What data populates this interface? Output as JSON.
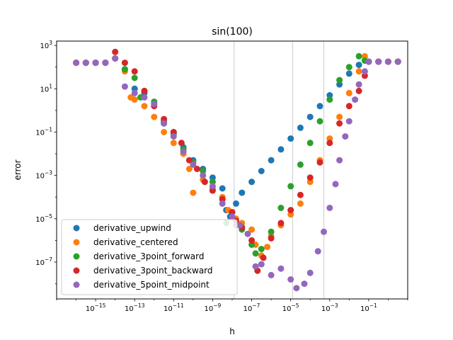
{
  "chart_data": {
    "type": "scatter",
    "title": "sin(100)",
    "xlabel": "h",
    "ylabel": "error",
    "xscale": "log",
    "yscale": "log",
    "xlim_exp": [
      -17,
      1
    ],
    "ylim_exp": [
      -8.7,
      3.2
    ],
    "x_ticks": [
      {
        "exp": -15,
        "base": "10",
        "sup": "−15"
      },
      {
        "exp": -13,
        "base": "10",
        "sup": "−13"
      },
      {
        "exp": -11,
        "base": "10",
        "sup": "−11"
      },
      {
        "exp": -9,
        "base": "10",
        "sup": "−9"
      },
      {
        "exp": -7,
        "base": "10",
        "sup": "−7"
      },
      {
        "exp": -5,
        "base": "10",
        "sup": "−5"
      },
      {
        "exp": -3,
        "base": "10",
        "sup": "−3"
      },
      {
        "exp": -1,
        "base": "10",
        "sup": "−1"
      }
    ],
    "y_ticks": [
      {
        "exp": 3,
        "base": "10",
        "sup": "3"
      },
      {
        "exp": 1,
        "base": "10",
        "sup": "1"
      },
      {
        "exp": -1,
        "base": "10",
        "sup": "−1"
      },
      {
        "exp": -3,
        "base": "10",
        "sup": "−3"
      },
      {
        "exp": -5,
        "base": "10",
        "sup": "−5"
      },
      {
        "exp": -7,
        "base": "10",
        "sup": "−7"
      }
    ],
    "vlines_log10": [
      -7.9,
      -4.9,
      -3.3
    ],
    "vline_color": "#d3d3d3",
    "legend_position": "lower-left",
    "series": [
      {
        "name": "derivative_upwind",
        "color": "#1f77b4",
        "points": [
          [
            -16,
            2.2
          ],
          [
            -15.5,
            2.2
          ],
          [
            -15,
            2.2
          ],
          [
            -14.5,
            2.2
          ],
          [
            -14,
            2.4
          ],
          [
            -13.5,
            1.9
          ],
          [
            -13,
            1.0
          ],
          [
            -12.5,
            0.8
          ],
          [
            -12,
            0.3
          ],
          [
            -11.5,
            -0.6
          ],
          [
            -11,
            -1.0
          ],
          [
            -10.5,
            -1.7
          ],
          [
            -10,
            -2.3
          ],
          [
            -9.5,
            -2.7
          ],
          [
            -9,
            -3.1
          ],
          [
            -8.5,
            -3.6
          ],
          [
            -8.3,
            -4.6
          ],
          [
            -8.1,
            -4.9
          ],
          [
            -7.8,
            -4.3
          ],
          [
            -7.5,
            -3.8
          ],
          [
            -7,
            -3.3
          ],
          [
            -6.5,
            -2.8
          ],
          [
            -6,
            -2.3
          ],
          [
            -5.5,
            -1.8
          ],
          [
            -5,
            -1.3
          ],
          [
            -4.5,
            -0.8
          ],
          [
            -4,
            -0.3
          ],
          [
            -3.5,
            0.2
          ],
          [
            -3,
            0.7
          ],
          [
            -2.5,
            1.2
          ],
          [
            -2,
            1.7
          ],
          [
            -1.5,
            2.1
          ],
          [
            -1.2,
            2.3
          ],
          [
            -1,
            2.25
          ],
          [
            -0.5,
            2.25
          ],
          [
            0,
            2.25
          ],
          [
            0.5,
            2.25
          ]
        ]
      },
      {
        "name": "derivative_centered",
        "color": "#ff7f0e",
        "points": [
          [
            -16,
            2.2
          ],
          [
            -15.5,
            2.2
          ],
          [
            -15,
            2.2
          ],
          [
            -14.5,
            2.2
          ],
          [
            -14,
            2.4
          ],
          [
            -13.5,
            1.8
          ],
          [
            -13.2,
            0.6
          ],
          [
            -13,
            0.5
          ],
          [
            -12.5,
            0.2
          ],
          [
            -12,
            -0.3
          ],
          [
            -11.5,
            -1.0
          ],
          [
            -11,
            -1.5
          ],
          [
            -10.5,
            -2.0
          ],
          [
            -10.2,
            -2.7
          ],
          [
            -10,
            -3.8
          ],
          [
            -9.5,
            -3.2
          ],
          [
            -9,
            -3.6
          ],
          [
            -8.5,
            -4.0
          ],
          [
            -8.2,
            -4.6
          ],
          [
            -7.8,
            -5.0
          ],
          [
            -7.5,
            -5.2
          ],
          [
            -7,
            -5.5
          ],
          [
            -6.8,
            -6.2
          ],
          [
            -6.5,
            -6.7
          ],
          [
            -6.2,
            -6.3
          ],
          [
            -6,
            -5.8
          ],
          [
            -5.5,
            -5.3
          ],
          [
            -5,
            -4.8
          ],
          [
            -4.5,
            -4.3
          ],
          [
            -4,
            -3.3
          ],
          [
            -3.5,
            -2.3
          ],
          [
            -3,
            -1.3
          ],
          [
            -2.5,
            -0.3
          ],
          [
            -2,
            0.8
          ],
          [
            -1.5,
            1.8
          ],
          [
            -1.2,
            2.5
          ],
          [
            -1,
            2.25
          ],
          [
            -0.5,
            2.25
          ],
          [
            0,
            2.25
          ],
          [
            0.5,
            2.25
          ]
        ]
      },
      {
        "name": "derivative_3point_forward",
        "color": "#2ca02c",
        "points": [
          [
            -16,
            2.2
          ],
          [
            -15.5,
            2.2
          ],
          [
            -15,
            2.2
          ],
          [
            -14.5,
            2.2
          ],
          [
            -14,
            2.4
          ],
          [
            -13.5,
            1.9
          ],
          [
            -13,
            1.5
          ],
          [
            -12.7,
            0.6
          ],
          [
            -12.5,
            0.9
          ],
          [
            -12,
            0.4
          ],
          [
            -11.5,
            -0.5
          ],
          [
            -11,
            -1.1
          ],
          [
            -10.5,
            -1.8
          ],
          [
            -10,
            -2.4
          ],
          [
            -9.5,
            -2.8
          ],
          [
            -9,
            -3.3
          ],
          [
            -8.5,
            -4.1
          ],
          [
            -8.3,
            -5.2
          ],
          [
            -8,
            -4.7
          ],
          [
            -7.8,
            -5.3
          ],
          [
            -7.5,
            -5.5
          ],
          [
            -7,
            -6.2
          ],
          [
            -6.8,
            -6.6
          ],
          [
            -6.5,
            -6.4
          ],
          [
            -6,
            -5.6
          ],
          [
            -5.5,
            -4.5
          ],
          [
            -5,
            -3.5
          ],
          [
            -4.5,
            -2.5
          ],
          [
            -4,
            -1.5
          ],
          [
            -3.5,
            -0.5
          ],
          [
            -3,
            0.5
          ],
          [
            -2.5,
            1.4
          ],
          [
            -2,
            2.0
          ],
          [
            -1.5,
            2.5
          ],
          [
            -1.2,
            2.3
          ],
          [
            -1,
            2.25
          ],
          [
            -0.5,
            2.25
          ],
          [
            0,
            2.25
          ],
          [
            0.5,
            2.25
          ]
        ]
      },
      {
        "name": "derivative_3point_backward",
        "color": "#d62728",
        "points": [
          [
            -16,
            2.2
          ],
          [
            -15.5,
            2.2
          ],
          [
            -15,
            2.2
          ],
          [
            -14.5,
            2.2
          ],
          [
            -14,
            2.7
          ],
          [
            -13.5,
            2.2
          ],
          [
            -13,
            1.8
          ],
          [
            -12.5,
            0.9
          ],
          [
            -12,
            0.2
          ],
          [
            -11.5,
            -0.4
          ],
          [
            -11,
            -1.0
          ],
          [
            -10.6,
            -1.5
          ],
          [
            -10.2,
            -2.3
          ],
          [
            -9.8,
            -2.7
          ],
          [
            -9.4,
            -3.3
          ],
          [
            -9,
            -3.7
          ],
          [
            -8.5,
            -4.1
          ],
          [
            -8,
            -4.7
          ],
          [
            -7.8,
            -5.1
          ],
          [
            -7.5,
            -5.4
          ],
          [
            -7,
            -6.0
          ],
          [
            -6.7,
            -7.4
          ],
          [
            -6.4,
            -6.8
          ],
          [
            -6,
            -5.9
          ],
          [
            -5.5,
            -5.2
          ],
          [
            -5,
            -4.6
          ],
          [
            -4.5,
            -3.9
          ],
          [
            -4,
            -3.1
          ],
          [
            -3.5,
            -2.4
          ],
          [
            -3,
            -1.5
          ],
          [
            -2.5,
            -0.6
          ],
          [
            -2,
            0.2
          ],
          [
            -1.5,
            0.9
          ],
          [
            -1.2,
            1.6
          ],
          [
            -1,
            2.25
          ],
          [
            -0.5,
            2.25
          ],
          [
            0,
            2.25
          ],
          [
            0.5,
            2.25
          ]
        ]
      },
      {
        "name": "derivative_5point_midpoint",
        "color": "#9467bd",
        "points": [
          [
            -16,
            2.2
          ],
          [
            -15.5,
            2.2
          ],
          [
            -15,
            2.2
          ],
          [
            -14.5,
            2.2
          ],
          [
            -14,
            2.4
          ],
          [
            -13.5,
            1.1
          ],
          [
            -13,
            0.8
          ],
          [
            -12.5,
            0.6
          ],
          [
            -12,
            0.3
          ],
          [
            -11.5,
            -0.6
          ],
          [
            -11,
            -1.2
          ],
          [
            -10.5,
            -1.9
          ],
          [
            -10,
            -2.5
          ],
          [
            -9.5,
            -3.0
          ],
          [
            -9,
            -3.5
          ],
          [
            -8.5,
            -4.3
          ],
          [
            -8,
            -4.9
          ],
          [
            -7.6,
            -5.3
          ],
          [
            -7.2,
            -5.7
          ],
          [
            -6.8,
            -7.2
          ],
          [
            -6.5,
            -7.1
          ],
          [
            -6,
            -7.6
          ],
          [
            -5.5,
            -7.3
          ],
          [
            -5,
            -7.8
          ],
          [
            -4.7,
            -8.2
          ],
          [
            -4.3,
            -8.0
          ],
          [
            -4,
            -7.5
          ],
          [
            -3.6,
            -6.5
          ],
          [
            -3.3,
            -5.6
          ],
          [
            -3,
            -4.5
          ],
          [
            -2.7,
            -3.4
          ],
          [
            -2.5,
            -2.3
          ],
          [
            -2.2,
            -1.2
          ],
          [
            -2,
            -0.5
          ],
          [
            -1.7,
            0.5
          ],
          [
            -1.5,
            1.2
          ],
          [
            -1.2,
            1.8
          ],
          [
            -1,
            2.25
          ],
          [
            -0.5,
            2.25
          ],
          [
            0,
            2.25
          ],
          [
            0.5,
            2.25
          ]
        ]
      }
    ]
  }
}
